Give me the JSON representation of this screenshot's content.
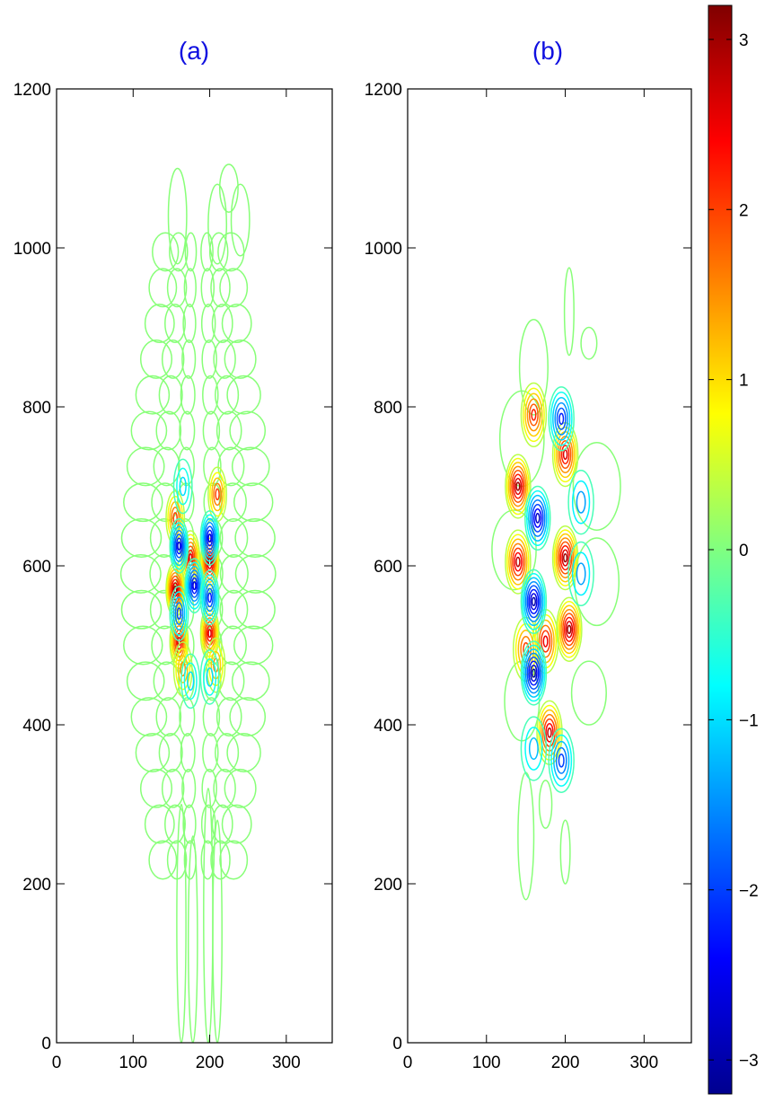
{
  "chart_data": [
    {
      "type": "contour",
      "title": "(a)",
      "xlim": [
        0,
        360
      ],
      "ylim": [
        0,
        1200
      ],
      "xticks": [
        0,
        100,
        200,
        300
      ],
      "yticks": [
        0,
        200,
        400,
        600,
        800,
        1000,
        1200
      ],
      "grid": false,
      "features": [
        {
          "x": 155,
          "y": 570,
          "value": 3.0
        },
        {
          "x": 200,
          "y": 605,
          "value": 3.0
        },
        {
          "x": 175,
          "y": 610,
          "value": 2.6
        },
        {
          "x": 160,
          "y": 505,
          "value": 2.6
        },
        {
          "x": 200,
          "y": 515,
          "value": 2.6
        },
        {
          "x": 155,
          "y": 660,
          "value": 2.0
        },
        {
          "x": 210,
          "y": 690,
          "value": 2.0
        },
        {
          "x": 165,
          "y": 470,
          "value": 1.5
        },
        {
          "x": 208,
          "y": 475,
          "value": 1.5
        },
        {
          "x": 160,
          "y": 625,
          "value": -2.6
        },
        {
          "x": 200,
          "y": 635,
          "value": -2.6
        },
        {
          "x": 180,
          "y": 575,
          "value": -2.6
        },
        {
          "x": 160,
          "y": 540,
          "value": -2.0
        },
        {
          "x": 200,
          "y": 560,
          "value": -2.2
        },
        {
          "x": 175,
          "y": 455,
          "value": -1.0
        },
        {
          "x": 200,
          "y": 460,
          "value": -1.0
        },
        {
          "x": 165,
          "y": 700,
          "value": -1.0
        }
      ]
    },
    {
      "type": "contour",
      "title": "(b)",
      "xlim": [
        0,
        360
      ],
      "ylim": [
        0,
        1200
      ],
      "xticks": [
        0,
        100,
        200,
        300
      ],
      "yticks": [
        0,
        200,
        400,
        600,
        800,
        1000,
        1200
      ],
      "grid": false,
      "features": [
        {
          "x": 140,
          "y": 700,
          "value": 3.0
        },
        {
          "x": 140,
          "y": 605,
          "value": 2.8
        },
        {
          "x": 200,
          "y": 610,
          "value": 3.0
        },
        {
          "x": 205,
          "y": 520,
          "value": 3.0
        },
        {
          "x": 200,
          "y": 740,
          "value": 2.6
        },
        {
          "x": 175,
          "y": 505,
          "value": 2.5
        },
        {
          "x": 180,
          "y": 390,
          "value": 2.8
        },
        {
          "x": 160,
          "y": 790,
          "value": 2.2
        },
        {
          "x": 150,
          "y": 495,
          "value": 2.0
        },
        {
          "x": 165,
          "y": 660,
          "value": -2.8
        },
        {
          "x": 160,
          "y": 555,
          "value": -3.0
        },
        {
          "x": 160,
          "y": 465,
          "value": -3.0
        },
        {
          "x": 195,
          "y": 785,
          "value": -2.2
        },
        {
          "x": 220,
          "y": 680,
          "value": -1.4
        },
        {
          "x": 220,
          "y": 590,
          "value": -1.4
        },
        {
          "x": 195,
          "y": 355,
          "value": -2.0
        },
        {
          "x": 160,
          "y": 370,
          "value": -1.2
        }
      ]
    }
  ],
  "colorbar": {
    "range": [
      -3.2,
      3.2
    ],
    "ticks": [
      3,
      2,
      1,
      0,
      -1,
      -2,
      -3
    ],
    "tick_labels": [
      "3",
      "2",
      "1",
      "0",
      "−1",
      "−2",
      "−3"
    ],
    "colormap": "jet",
    "colors": [
      "#00008f",
      "#0000ff",
      "#00ffff",
      "#80ff80",
      "#ffff00",
      "#ff0000",
      "#800000"
    ]
  }
}
